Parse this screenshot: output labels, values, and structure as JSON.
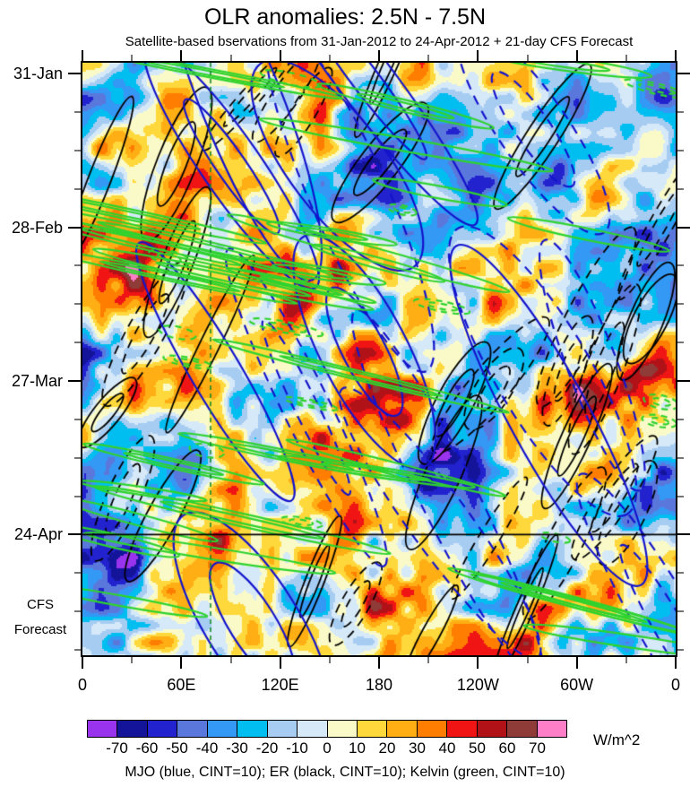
{
  "title": "OLR anomalies: 2.5N - 7.5N",
  "subtitle": "Satellite-based bservations from 31-Jan-2012 to 24-Apr-2012 + 21-day CFS Forecast",
  "left_axis": {
    "tick_labels": [
      "31-Jan",
      "28-Feb",
      "27-Mar",
      "24-Apr"
    ],
    "forecast_caption": [
      "CFS",
      "Forecast"
    ]
  },
  "bottom_axis": {
    "tick_labels": [
      "0",
      "60E",
      "120E",
      "180",
      "120W",
      "60W",
      "0"
    ]
  },
  "colorbar": {
    "tick_labels": [
      "-70",
      "-60",
      "-50",
      "-40",
      "-30",
      "-20",
      "-10",
      "0",
      "10",
      "20",
      "30",
      "40",
      "50",
      "60",
      "70"
    ],
    "colors": [
      "#9933EE",
      "#14149B",
      "#2222CE",
      "#5A78DC",
      "#3498F5",
      "#00BEF0",
      "#A6CCF2",
      "#D6E9F8",
      "#FAFAC8",
      "#FFD83C",
      "#FFAE14",
      "#FF7D00",
      "#F01414",
      "#B01218",
      "#8F3B38",
      "#FF7EC8"
    ],
    "units_label": "W/m^2"
  },
  "caption": "MJO (blue, CINT=10); ER (black, CINT=10); Kelvin (green, CINT=10)",
  "chart_data": {
    "type": "heatmap",
    "title": "OLR anomalies: 2.5N - 7.5N",
    "subtitle": "Satellite-based bservations from 31-Jan-2012 to 24-Apr-2012 + 21-day CFS Forecast",
    "fill_field": "OLR anomaly",
    "units": "W/m^2",
    "x_axis": {
      "tick_labels": [
        "0",
        "60E",
        "120E",
        "180",
        "120W",
        "60W",
        "0"
      ],
      "domain": "longitude 0E eastward around globe to 0",
      "minor_ticks_between_majors": 1
    },
    "y_axis": {
      "tick_labels": [
        "31-Jan",
        "28-Feb",
        "27-Mar",
        "24-Apr"
      ],
      "direction": "time increasing downward",
      "major_tick_interval_days": 28,
      "minor_tick_interval_days": 7,
      "observation_start": "31-Jan-2012",
      "observation_end": "24-Apr-2012",
      "forecast_length_days": 21,
      "forecast_source": "CFS"
    },
    "fill_levels": [
      -70,
      -60,
      -50,
      -40,
      -30,
      -20,
      -10,
      0,
      10,
      20,
      30,
      40,
      50,
      60,
      70
    ],
    "fill_palette": [
      "#9933EE",
      "#14149B",
      "#2222CE",
      "#5A78DC",
      "#3498F5",
      "#00BEF0",
      "#A6CCF2",
      "#D6E9F8",
      "#FAFAC8",
      "#FFD83C",
      "#FFAE14",
      "#FF7D00",
      "#F01414",
      "#B01218",
      "#8F3B38",
      "#FF7EC8"
    ],
    "contour_overlays": [
      {
        "name": "MJO",
        "color_name": "blue",
        "hex": "#1414CC",
        "contour_interval": 10,
        "line_styles": [
          "solid",
          "dashed"
        ]
      },
      {
        "name": "ER",
        "color_name": "black",
        "hex": "#000000",
        "contour_interval": 10,
        "line_styles": [
          "solid",
          "dashed"
        ]
      },
      {
        "name": "Kelvin",
        "color_name": "green",
        "hex": "#2FD32F",
        "contour_interval": 10,
        "line_styles": [
          "solid",
          "dashed"
        ]
      }
    ],
    "forecast_divider_line": {
      "orientation": "horizontal",
      "at_y_tick": "24-Apr",
      "color": "#000000",
      "style": "solid"
    },
    "reference_line": {
      "orientation": "vertical",
      "x_fraction": 0.216,
      "color": "#158A2A",
      "style": "dashed"
    },
    "legend_caption": "MJO (blue, CINT=10); ER (black, CINT=10); Kelvin (green, CINT=10)"
  }
}
